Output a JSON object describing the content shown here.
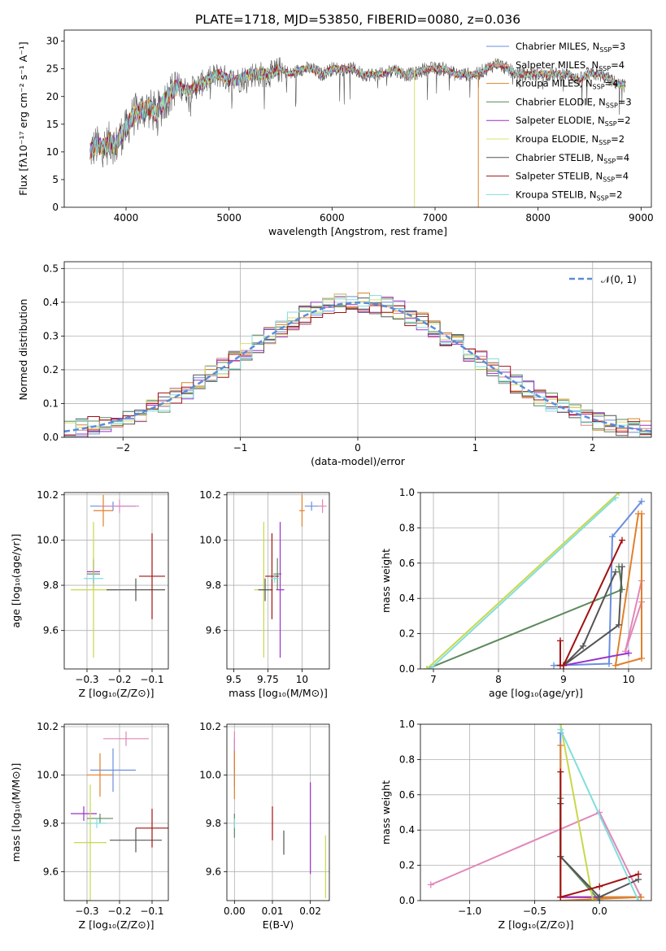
{
  "figure_title": "PLATE=1718, MJD=53850, FIBERID=0080, z=0.036",
  "colors": {
    "series": [
      "#6a8ee0",
      "#e08080",
      "#d8842a",
      "#5c8a5c",
      "#9b30c8",
      "#d8e070",
      "#555555",
      "#a31010",
      "#80dede"
    ],
    "markers": [
      "#6a8ee0",
      "#e087b8",
      "#e0802a",
      "#5c8a5c",
      "#9b30c8",
      "#c8d84a",
      "#555555",
      "#a31010",
      "#80dede"
    ],
    "gaussian": "#5a8cd8",
    "grid": "#b0b0b0"
  },
  "chart_data": [
    {
      "id": "spectrum",
      "type": "line",
      "xlabel": "wavelength [Angstrom, rest frame]",
      "ylabel": "Flux [fλ10⁻¹⁷ erg cm⁻² s⁻¹ A⁻¹]",
      "xlim": [
        3400,
        9100
      ],
      "ylim": [
        0,
        32
      ],
      "xticks": [
        4000,
        5000,
        6000,
        7000,
        8000,
        9000
      ],
      "yticks": [
        0,
        5,
        10,
        15,
        20,
        25,
        30
      ],
      "grid": false,
      "legend_position": "top-right",
      "legend": [
        "Chabrier MILES, N_SSP=3",
        "Salpeter MILES, N_SSP=4",
        "Kroupa MILES, N_SSP=4",
        "Chabrier ELODIE, N_SSP=3",
        "Salpeter ELODIE, N_SSP=2",
        "Kroupa ELODIE, N_SSP=2",
        "Chabrier STELIB, N_SSP=4",
        "Salpeter STELIB, N_SSP=4",
        "Kroupa STELIB, N_SSP=2"
      ],
      "legend_display": [
        {
          "pre": "Chabrier MILES, N",
          "sub": "SSP",
          "post": "=3"
        },
        {
          "pre": "Salpeter MILES, N",
          "sub": "SSP",
          "post": "=4"
        },
        {
          "pre": "Kroupa MILES, N",
          "sub": "SSP",
          "post": "=4"
        },
        {
          "pre": "Chabrier ELODIE, N",
          "sub": "SSP",
          "post": "=3"
        },
        {
          "pre": "Salpeter ELODIE, N",
          "sub": "SSP",
          "post": "=2"
        },
        {
          "pre": "Kroupa ELODIE, N",
          "sub": "SSP",
          "post": "=2"
        },
        {
          "pre": "Chabrier STELIB, N",
          "sub": "SSP",
          "post": "=4"
        },
        {
          "pre": "Salpeter STELIB, N",
          "sub": "SSP",
          "post": "=4"
        },
        {
          "pre": "Kroupa STELIB, N",
          "sub": "SSP",
          "post": "=2"
        }
      ],
      "spectrum_x": [
        3650,
        3700,
        3750,
        3800,
        3850,
        3900,
        3950,
        4000,
        4050,
        4100,
        4200,
        4300,
        4400,
        4500,
        4600,
        4700,
        4800,
        4900,
        5000,
        5100,
        5200,
        5300,
        5400,
        5500,
        5600,
        5700,
        5800,
        5900,
        6000,
        6100,
        6200,
        6300,
        6400,
        6500,
        6600,
        6700,
        6800,
        6900,
        7000,
        7100,
        7200,
        7300,
        7400,
        7500,
        7600,
        7700,
        7800,
        7900,
        8000,
        8100,
        8200,
        8300,
        8400,
        8500,
        8600,
        8700,
        8800,
        8850
      ],
      "spectrum_y": [
        10,
        11,
        11,
        11,
        12,
        11,
        13,
        14,
        16,
        17,
        18,
        17,
        20,
        22,
        21,
        22,
        23,
        24,
        23,
        23,
        24,
        24,
        24,
        25,
        24,
        25,
        25,
        24,
        25,
        25,
        25,
        24,
        24,
        24,
        25,
        24,
        24,
        25,
        25,
        25,
        24,
        24,
        24,
        25,
        26,
        25,
        24,
        24,
        24,
        24,
        24,
        24,
        23,
        24,
        24,
        23,
        22,
        22
      ],
      "dropouts": [
        {
          "series": 5,
          "x": 6800,
          "from": 25
        },
        {
          "series": 2,
          "x": 7420,
          "from": 24
        }
      ]
    },
    {
      "id": "residuals",
      "type": "bar",
      "xlabel": "(data-model)/error",
      "ylabel": "Normed distribution",
      "xlim": [
        -2.5,
        2.5
      ],
      "ylim": [
        0,
        0.52
      ],
      "xticks": [
        -2,
        -1,
        0,
        1,
        2
      ],
      "yticks": [
        0.0,
        0.1,
        0.2,
        0.3,
        0.4,
        0.5
      ],
      "grid": true,
      "legend_position": "top-right",
      "gaussian_label": "𝒩(0, 1)",
      "bin_width": 0.1,
      "bin_start": -2.5
    },
    {
      "id": "age-vs-Z",
      "type": "scatter",
      "xlabel": "Z [log₁₀(Z/Z⊙)]",
      "ylabel": "age  [log₁₀(age/yr)]",
      "xlim": [
        -0.37,
        -0.05
      ],
      "ylim": [
        9.43,
        10.21
      ],
      "xticks": [
        -0.3,
        -0.2,
        -0.1
      ],
      "yticks": [
        9.6,
        9.8,
        10.0,
        10.2
      ],
      "grid": true,
      "points": [
        {
          "x": -0.22,
          "y": 10.15,
          "xerr": 0.07,
          "yerr": 0.02
        },
        {
          "x": -0.2,
          "y": 10.15,
          "xerr": 0.06,
          "yerr": 0.03
        },
        {
          "x": -0.25,
          "y": 10.13,
          "xerr": 0.03,
          "yerr": 0.07
        },
        {
          "x": -0.28,
          "y": 9.85,
          "xerr": 0.02,
          "yerr": 0.07
        },
        {
          "x": -0.28,
          "y": 9.86,
          "xerr": 0.02,
          "yerr": 0.05
        },
        {
          "x": -0.28,
          "y": 9.78,
          "xerr": 0.07,
          "yerr": 0.3
        },
        {
          "x": -0.15,
          "y": 9.78,
          "xerr": 0.09,
          "yerr": 0.05
        },
        {
          "x": -0.1,
          "y": 9.84,
          "xerr": 0.04,
          "yerr": 0.19
        },
        {
          "x": -0.28,
          "y": 9.83,
          "xerr": 0.03,
          "yerr": 0.02
        }
      ]
    },
    {
      "id": "age-vs-mass",
      "type": "scatter",
      "xlabel": "mass [log₁₀(M/M⊙)]",
      "ylabel": "",
      "xlim": [
        9.45,
        10.2
      ],
      "ylim": [
        9.43,
        10.21
      ],
      "xticks": [
        9.5,
        9.75,
        10.0
      ],
      "yticks": [
        9.6,
        9.8,
        10.0,
        10.2
      ],
      "grid": true,
      "points": [
        {
          "x": 10.07,
          "y": 10.15,
          "xerr": 0.05,
          "yerr": 0.02
        },
        {
          "x": 10.15,
          "y": 10.15,
          "xerr": 0.03,
          "yerr": 0.03
        },
        {
          "x": 10.0,
          "y": 10.13,
          "xerr": 0.02,
          "yerr": 0.07
        },
        {
          "x": 9.82,
          "y": 9.85,
          "xerr": 0.03,
          "yerr": 0.07
        },
        {
          "x": 9.84,
          "y": 9.78,
          "xerr": 0.03,
          "yerr": 0.3
        },
        {
          "x": 9.72,
          "y": 9.78,
          "xerr": 0.07,
          "yerr": 0.3
        },
        {
          "x": 9.73,
          "y": 9.78,
          "xerr": 0.05,
          "yerr": 0.05
        },
        {
          "x": 9.78,
          "y": 9.84,
          "xerr": 0.05,
          "yerr": 0.19
        },
        {
          "x": 9.8,
          "y": 9.83,
          "xerr": 0.03,
          "yerr": 0.02
        }
      ]
    },
    {
      "id": "mass-weight-vs-age",
      "type": "line",
      "xlabel": "age  [log₁₀(age/yr)]",
      "ylabel": "mass weight",
      "xlim": [
        6.8,
        10.35
      ],
      "ylim": [
        0,
        1.0
      ],
      "xticks": [
        7,
        8,
        9,
        10
      ],
      "yticks": [
        0.0,
        0.2,
        0.4,
        0.6,
        0.8,
        1.0
      ],
      "grid": true,
      "lines": [
        {
          "x": [
            10.2,
            9.75,
            9.7,
            8.85
          ],
          "y": [
            0.95,
            0.75,
            0.03,
            0.02
          ]
        },
        {
          "x": [
            10.2,
            9.95,
            10.2
          ],
          "y": [
            0.5,
            0.1,
            0.38
          ]
        },
        {
          "x": [
            10.2,
            10.2,
            9.8,
            10.15
          ],
          "y": [
            0.88,
            0.06,
            0.02,
            0.88
          ]
        },
        {
          "x": [
            6.9,
            9.9,
            9.85
          ],
          "y": [
            0.0,
            0.45,
            0.58
          ]
        },
        {
          "x": [
            10.0,
            9.0
          ],
          "y": [
            0.09,
            0.02
          ]
        },
        {
          "x": [
            9.85,
            6.9
          ],
          "y": [
            1.0,
            0.0
          ]
        },
        {
          "x": [
            9.8,
            9.3,
            9.0,
            9.85,
            9.9
          ],
          "y": [
            0.55,
            0.13,
            0.02,
            0.25,
            0.58
          ]
        },
        {
          "x": [
            8.95,
            8.95,
            9.0,
            9.9
          ],
          "y": [
            0.16,
            0.02,
            0.02,
            0.73
          ]
        },
        {
          "x": [
            9.8,
            6.95
          ],
          "y": [
            0.97,
            0.0
          ]
        }
      ]
    },
    {
      "id": "mass-vs-Z",
      "type": "scatter",
      "xlabel": "Z [log₁₀(Z/Z⊙)]",
      "ylabel": "mass [log₁₀(M/M⊙)]",
      "xlim": [
        -0.37,
        -0.05
      ],
      "ylim": [
        9.48,
        10.21
      ],
      "xticks": [
        -0.3,
        -0.2,
        -0.1
      ],
      "yticks": [
        9.6,
        9.8,
        10.0,
        10.2
      ],
      "grid": true,
      "points": [
        {
          "x": -0.22,
          "y": 10.02,
          "xerr": 0.07,
          "yerr": 0.09
        },
        {
          "x": -0.18,
          "y": 10.15,
          "xerr": 0.07,
          "yerr": 0.03
        },
        {
          "x": -0.26,
          "y": 10.0,
          "xerr": 0.04,
          "yerr": 0.09
        },
        {
          "x": -0.26,
          "y": 9.82,
          "xerr": 0.04,
          "yerr": 0.02
        },
        {
          "x": -0.31,
          "y": 9.84,
          "xerr": 0.04,
          "yerr": 0.03
        },
        {
          "x": -0.29,
          "y": 9.72,
          "xerr": 0.05,
          "yerr": 0.24
        },
        {
          "x": -0.15,
          "y": 9.73,
          "xerr": 0.08,
          "yerr": 0.05
        },
        {
          "x": -0.1,
          "y": 9.78,
          "xerr": 0.05,
          "yerr": 0.08
        },
        {
          "x": -0.27,
          "y": 9.8,
          "xerr": 0.03,
          "yerr": 0.02
        }
      ]
    },
    {
      "id": "mass-vs-EBV",
      "type": "scatter",
      "xlabel": "E(B-V)",
      "ylabel": "",
      "xlim": [
        -0.002,
        0.025
      ],
      "ylim": [
        9.48,
        10.21
      ],
      "xticks": [
        0.0,
        0.01,
        0.02
      ],
      "xtick_labels": [
        "0.00",
        "0.01",
        "0.02"
      ],
      "yticks": [
        9.6,
        9.8,
        10.0,
        10.2
      ],
      "grid": true,
      "points": [
        {
          "x": 0.0,
          "y": 10.05,
          "xerr": 0,
          "yerr": 0.1
        },
        {
          "x": 0.0,
          "y": 10.1,
          "xerr": 0,
          "yerr": 0.08
        },
        {
          "x": 0.0,
          "y": 10.0,
          "xerr": 0,
          "yerr": 0.1
        },
        {
          "x": 0.0,
          "y": 9.79,
          "xerr": 0,
          "yerr": 0.05
        },
        {
          "x": 0.02,
          "y": 9.78,
          "xerr": 0,
          "yerr": 0.19
        },
        {
          "x": 0.024,
          "y": 9.62,
          "xerr": 0,
          "yerr": 0.13
        },
        {
          "x": 0.013,
          "y": 9.72,
          "xerr": 0,
          "yerr": 0.05
        },
        {
          "x": 0.01,
          "y": 9.8,
          "xerr": 0,
          "yerr": 0.07
        },
        {
          "x": 0.0,
          "y": 9.8,
          "xerr": 0,
          "yerr": 0.02
        }
      ]
    },
    {
      "id": "mass-weight-vs-Z",
      "type": "line",
      "xlabel": "Z [log₁₀(Z/Z⊙)]",
      "ylabel": "mass weight",
      "xlim": [
        -1.38,
        0.4
      ],
      "ylim": [
        0,
        1.0
      ],
      "xticks": [
        -1.0,
        -0.5,
        0.0
      ],
      "yticks": [
        0.0,
        0.2,
        0.4,
        0.6,
        0.8,
        1.0
      ],
      "grid": true,
      "lines": [
        {
          "x": [
            -0.3,
            -0.3,
            0.32,
            -0.3
          ],
          "y": [
            0.95,
            0.02,
            0.02,
            0.02
          ]
        },
        {
          "x": [
            -1.3,
            0.0,
            0.32
          ],
          "y": [
            0.09,
            0.5,
            0.02
          ]
        },
        {
          "x": [
            -0.3,
            -0.3,
            0.32,
            -0.3
          ],
          "y": [
            0.88,
            0.02,
            0.02,
            0.0
          ]
        },
        {
          "x": [
            -0.3,
            -0.3,
            0.0
          ],
          "y": [
            0.58,
            0.25,
            0.0
          ]
        },
        {
          "x": [
            0.0,
            -0.3
          ],
          "y": [
            0.02,
            0.02
          ]
        },
        {
          "x": [
            -0.3,
            -0.05
          ],
          "y": [
            1.0,
            0.0
          ]
        },
        {
          "x": [
            -0.3,
            -0.3,
            0.0,
            0.3
          ],
          "y": [
            0.55,
            0.25,
            0.02,
            0.12
          ]
        },
        {
          "x": [
            -0.3,
            -0.3,
            0.0,
            0.3
          ],
          "y": [
            0.73,
            0.02,
            0.08,
            0.15
          ]
        },
        {
          "x": [
            -0.3,
            0.3
          ],
          "y": [
            0.97,
            0.0
          ]
        }
      ]
    }
  ]
}
